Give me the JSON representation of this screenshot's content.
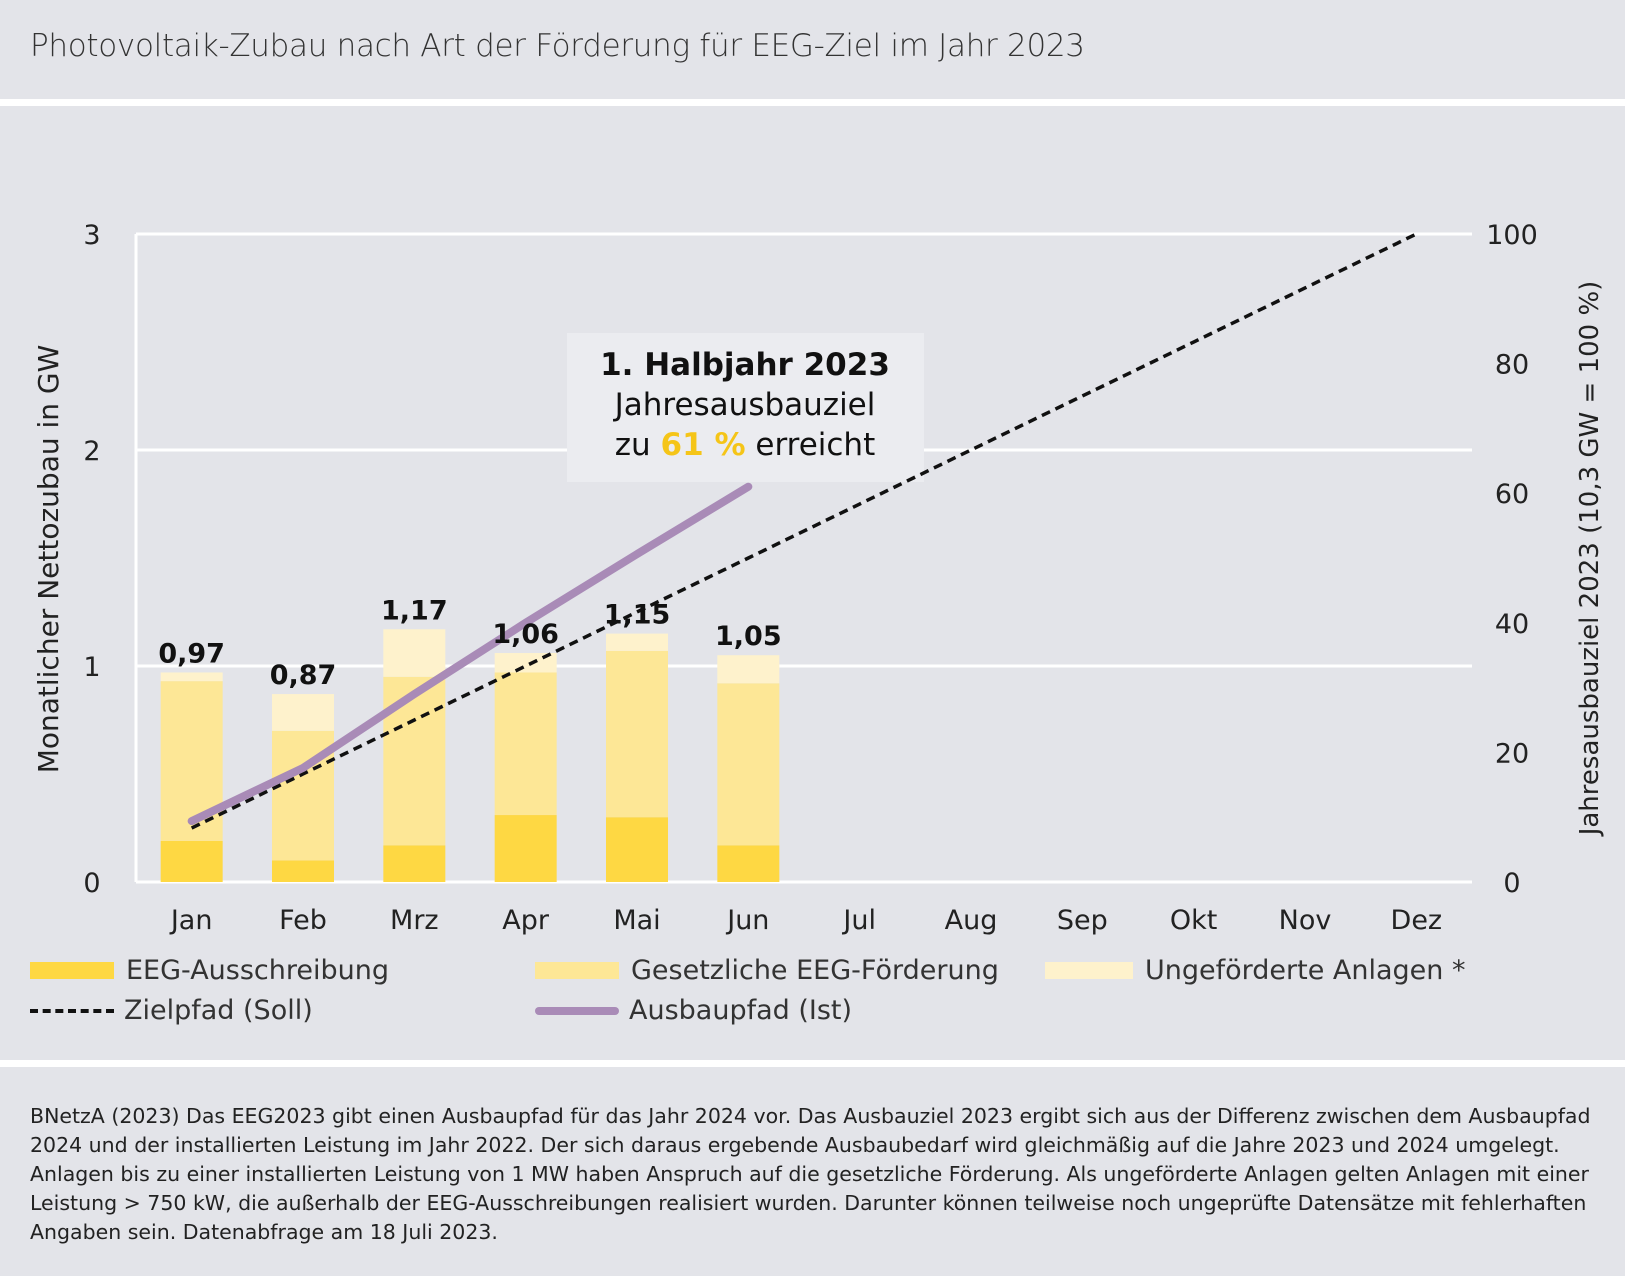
{
  "header": {
    "title": "Photovoltaik-Zubau nach Art der Förderung für EEG-Ziel im Jahr 2023"
  },
  "chart_data": {
    "type": "bar",
    "stacked": true,
    "title": "Photovoltaik-Zubau nach Art der Förderung für EEG-Ziel im Jahr 2023",
    "categories": [
      "Jan",
      "Feb",
      "Mrz",
      "Apr",
      "Mai",
      "Jun",
      "Jul",
      "Aug",
      "Sep",
      "Okt",
      "Nov",
      "Dez"
    ],
    "ylabel": "Monatlicher Nettozubau in GW",
    "ylim": [
      0,
      3
    ],
    "yticks": [
      "0",
      "1",
      "2",
      "3"
    ],
    "y2label": "Jahresausbauziel 2023 (10,3  GW = 100 %)",
    "y2lim": [
      0,
      100
    ],
    "y2ticks": [
      "0",
      "20",
      "40",
      "60",
      "80",
      "100"
    ],
    "grid": true,
    "series": [
      {
        "name": "EEG-Ausschreibung",
        "axis": "left",
        "color": "#fed843",
        "values": [
          0.19,
          0.1,
          0.17,
          0.31,
          0.3,
          0.17
        ]
      },
      {
        "name": "Gesetzliche EEG-Förderung",
        "axis": "left",
        "color": "#fde796",
        "values": [
          0.74,
          0.6,
          0.78,
          0.66,
          0.77,
          0.75
        ]
      },
      {
        "name": "Ungeförderte Anlagen *",
        "axis": "left",
        "color": "#fef2cc",
        "values": [
          0.04,
          0.17,
          0.22,
          0.09,
          0.08,
          0.13
        ]
      }
    ],
    "totals": [
      0.97,
      0.87,
      1.17,
      1.06,
      1.15,
      1.05
    ],
    "total_labels": [
      "0,97",
      "0,87",
      "1,17",
      "1,06",
      "1,15",
      "1,05"
    ],
    "lines": [
      {
        "name": "Zielpfad (Soll)",
        "axis": "right",
        "style": "dashed",
        "color": "#111111",
        "values": [
          8.33,
          16.67,
          25.0,
          33.33,
          41.67,
          50.0,
          58.33,
          66.67,
          75.0,
          83.33,
          91.67,
          100.0
        ]
      },
      {
        "name": "Ausbaupfad (Ist)",
        "axis": "right",
        "style": "solid",
        "color": "#a98bb7",
        "values": [
          9.4,
          17.6,
          29.0,
          40.0,
          50.6,
          61.0
        ]
      }
    ],
    "legend_position": "bottom",
    "annotation": {
      "line1": "1. Halbjahr 2023",
      "line2": "Jahresausbauziel",
      "line3_pre": "zu ",
      "line3_highlight": "61 %",
      "line3_post": " erreicht",
      "highlight_color": "#f5c518"
    }
  },
  "legend": {
    "items": [
      {
        "label": "EEG-Ausschreibung"
      },
      {
        "label": "Gesetzliche EEG-Förderung"
      },
      {
        "label": "Ungeförderte Anlagen *"
      },
      {
        "label": "Zielpfad (Soll)"
      },
      {
        "label": "Ausbaupfad (Ist)"
      }
    ]
  },
  "footnote": "BNetzA (2023) Das EEG2023 gibt einen Ausbaupfad für das Jahr 2024 vor. Das Ausbauziel 2023 ergibt sich aus der Differenz zwischen dem Ausbaupfad 2024 und der installierten Leistung im Jahr 2022. Der sich daraus ergebende Ausbaubedarf wird gleichmäßig auf die Jahre 2023 und 2024 umgelegt. Anlagen bis zu einer installierten Leistung von 1 MW haben Anspruch auf die gesetzliche Förderung. Als ungeförderte Anlagen gelten Anlagen mit einer Leistung > 750 kW, die außerhalb der EEG-Ausschreibungen realisiert wurden. Darunter können teilweise noch ungeprüfte Datensätze mit fehlerhaften Angaben sein. Datenabfrage am 18 Juli 2023."
}
